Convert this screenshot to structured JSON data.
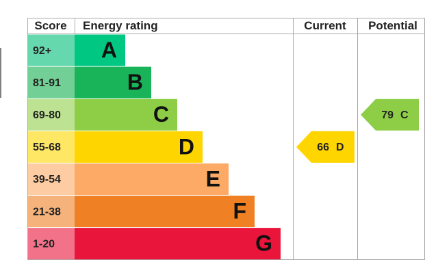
{
  "header": {
    "score": "Score",
    "rating": "Energy rating",
    "current": "Current",
    "potential": "Potential"
  },
  "bands": [
    {
      "score": "92+",
      "letter": "A",
      "color": "#00c781",
      "tint": "#66d8ae"
    },
    {
      "score": "81-91",
      "letter": "B",
      "color": "#19b459",
      "tint": "#72cf95"
    },
    {
      "score": "69-80",
      "letter": "C",
      "color": "#8dce46",
      "tint": "#bde392"
    },
    {
      "score": "55-68",
      "letter": "D",
      "color": "#ffd500",
      "tint": "#ffe766"
    },
    {
      "score": "39-54",
      "letter": "E",
      "color": "#fcaa65",
      "tint": "#fdcca2"
    },
    {
      "score": "21-38",
      "letter": "F",
      "color": "#ef8023",
      "tint": "#f5b27b"
    },
    {
      "score": "1-20",
      "letter": "G",
      "color": "#e9153b",
      "tint": "#f27389"
    }
  ],
  "current": {
    "value": 66,
    "letter": "D"
  },
  "potential": {
    "value": 79,
    "letter": "C"
  }
}
